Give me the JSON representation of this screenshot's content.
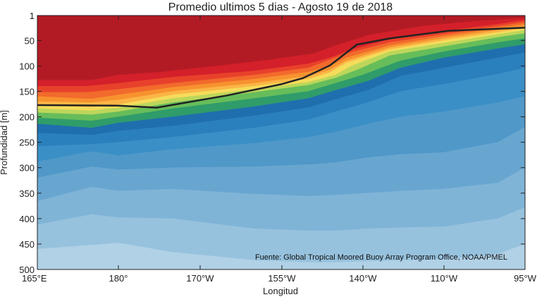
{
  "chart_data": {
    "type": "filled-contour",
    "title": "Promedio ultimos 5 dias - Agosto 19 de 2018",
    "xlabel": "Longitud",
    "ylabel": "Profundidad [m]",
    "annotation": "Fuente: Global Tropical Moored Buoy Array Program Office, NOAA/PMEL",
    "x_ticks": [
      {
        "value": 165,
        "label": "165°E"
      },
      {
        "value": 180,
        "label": "180°"
      },
      {
        "value": 190,
        "label": "170°W"
      },
      {
        "value": 205,
        "label": "155°W"
      },
      {
        "value": 220,
        "label": "140°W"
      },
      {
        "value": 250,
        "label": "110°W"
      },
      {
        "value": 265,
        "label": "95°W"
      }
    ],
    "y_ticks": [
      1,
      50,
      100,
      150,
      200,
      250,
      300,
      350,
      400,
      450,
      500
    ],
    "xlim": [
      165,
      255
    ],
    "ylim": [
      1,
      500
    ],
    "y_reversed": true,
    "grid": false,
    "band_colors": [
      "#b31b24",
      "#d4202a",
      "#e8412b",
      "#f26a2c",
      "#f7922f",
      "#fbb546",
      "#f5dc5a",
      "#bcd65a",
      "#66bd5a",
      "#2f9c6a",
      "#1f6fae",
      "#2a80bd",
      "#3a8fc6",
      "#4f98c8",
      "#68a6d0",
      "#80b4d7",
      "#97c2de",
      "#b0d1e6",
      "#c9e0ef"
    ],
    "isolines": [
      {
        "x": [
          165,
          180,
          177,
          195,
          205,
          210,
          214,
          220,
          222,
          230,
          240,
          255
        ],
        "depth": [
          0,
          0,
          0,
          0,
          0,
          0,
          0,
          0,
          0,
          0,
          0,
          0
        ]
      },
      {
        "x": [
          165,
          180,
          175,
          188,
          200,
          208,
          216,
          220,
          226,
          236,
          246,
          255
        ],
        "depth": [
          128,
          118,
          128,
          112,
          98,
          88,
          76,
          60,
          40,
          22,
          12,
          6
        ]
      },
      {
        "x": [
          165,
          180,
          174,
          190,
          205,
          215,
          219,
          223,
          230,
          240,
          250,
          255
        ],
        "depth": [
          140,
          134,
          140,
          122,
          110,
          96,
          84,
          68,
          48,
          32,
          18,
          10
        ]
      },
      {
        "x": [
          165,
          180,
          174,
          190,
          205,
          215,
          218,
          222,
          230,
          240,
          250,
          255
        ],
        "depth": [
          152,
          146,
          152,
          134,
          118,
          104,
          92,
          76,
          54,
          38,
          22,
          14
        ]
      },
      {
        "x": [
          165,
          180,
          175,
          190,
          205,
          215,
          219,
          222,
          230,
          240,
          250,
          255
        ],
        "depth": [
          160,
          157,
          165,
          142,
          126,
          112,
          100,
          84,
          60,
          42,
          26,
          18
        ]
      },
      {
        "x": [
          165,
          180,
          175,
          190,
          205,
          215,
          219,
          222,
          230,
          240,
          250,
          255
        ],
        "depth": [
          170,
          167,
          172,
          150,
          134,
          120,
          108,
          90,
          64,
          46,
          30,
          22
        ]
      },
      {
        "x": [
          165,
          180,
          175,
          190,
          205,
          215,
          219,
          222,
          230,
          240,
          250,
          255
        ],
        "depth": [
          178,
          176,
          181,
          157,
          140,
          126,
          113,
          94,
          68,
          50,
          34,
          26
        ]
      },
      {
        "x": [
          165,
          180,
          175,
          190,
          205,
          215,
          220,
          223,
          230,
          240,
          250,
          255
        ],
        "depth": [
          184,
          182,
          188,
          164,
          146,
          132,
          118,
          100,
          72,
          55,
          38,
          30
        ]
      },
      {
        "x": [
          165,
          180,
          175,
          190,
          205,
          215,
          220,
          224,
          230,
          240,
          250,
          255
        ],
        "depth": [
          192,
          190,
          196,
          172,
          152,
          138,
          124,
          108,
          80,
          62,
          44,
          36
        ]
      },
      {
        "x": [
          165,
          180,
          175,
          190,
          205,
          215,
          220,
          225,
          232,
          240,
          250,
          255
        ],
        "depth": [
          202,
          200,
          208,
          184,
          164,
          150,
          134,
          118,
          90,
          72,
          54,
          46
        ]
      },
      {
        "x": [
          165,
          180,
          175,
          190,
          205,
          215,
          220,
          226,
          232,
          240,
          250,
          255
        ],
        "depth": [
          214,
          212,
          222,
          200,
          180,
          164,
          148,
          130,
          104,
          84,
          66,
          58
        ]
      },
      {
        "x": [
          165,
          180,
          175,
          190,
          205,
          215,
          220,
          226,
          232,
          240,
          250,
          255
        ],
        "depth": [
          232,
          228,
          236,
          218,
          198,
          182,
          166,
          148,
          120,
          104,
          84,
          74
        ]
      },
      {
        "x": [
          165,
          180,
          175,
          190,
          205,
          215,
          220,
          226,
          232,
          240,
          250,
          255
        ],
        "depth": [
          258,
          250,
          254,
          240,
          222,
          206,
          190,
          172,
          150,
          136,
          116,
          104
        ]
      },
      {
        "x": [
          165,
          180,
          175,
          190,
          205,
          215,
          220,
          226,
          232,
          240,
          250,
          255
        ],
        "depth": [
          288,
          276,
          268,
          264,
          252,
          240,
          230,
          214,
          200,
          190,
          172,
          160
        ]
      },
      {
        "x": [
          165,
          180,
          175,
          190,
          205,
          215,
          220,
          226,
          232,
          240,
          250,
          255
        ],
        "depth": [
          320,
          304,
          298,
          300,
          298,
          294,
          290,
          280,
          274,
          270,
          250,
          220
        ]
      },
      {
        "x": [
          165,
          180,
          175,
          190,
          205,
          215,
          220,
          226,
          232,
          240,
          250,
          255
        ],
        "depth": [
          366,
          346,
          338,
          342,
          352,
          356,
          354,
          350,
          346,
          342,
          330,
          300
        ]
      },
      {
        "x": [
          165,
          180,
          175,
          190,
          205,
          215,
          220,
          226,
          232,
          240,
          250,
          255
        ],
        "depth": [
          412,
          398,
          392,
          400,
          420,
          424,
          424,
          420,
          418,
          416,
          400,
          378
        ]
      },
      {
        "x": [
          165,
          180,
          175,
          190,
          205,
          215,
          220,
          226,
          232,
          240,
          250,
          255
        ],
        "depth": [
          460,
          448,
          452,
          466,
          482,
          486,
          486,
          484,
          482,
          480,
          470,
          450
        ]
      },
      {
        "x": [
          165,
          180,
          175,
          190,
          205,
          215,
          220,
          226,
          232,
          240,
          250,
          255
        ],
        "depth": [
          500,
          500,
          500,
          500,
          500,
          500,
          500,
          500,
          500,
          500,
          500,
          500
        ]
      }
    ],
    "thermocline_line": {
      "color": "#222222",
      "x": [
        165,
        180,
        187,
        200,
        210,
        214,
        219,
        224,
        230,
        241,
        255
      ],
      "depth": [
        177,
        178,
        182,
        158,
        136,
        124,
        99,
        58,
        46,
        31,
        25
      ]
    }
  }
}
